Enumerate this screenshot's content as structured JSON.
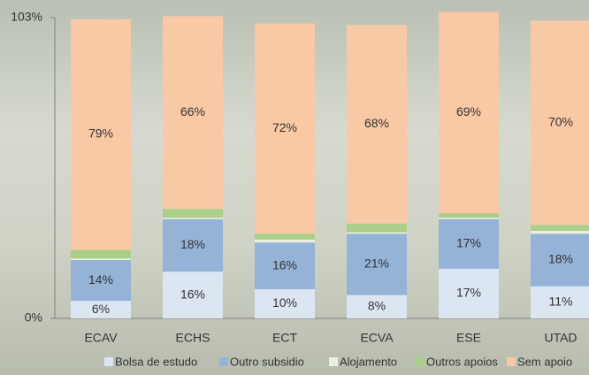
{
  "chart_data": {
    "type": "stacked_bar",
    "categories": [
      "ECAV",
      "ECHS",
      "ECT",
      "ECVA",
      "ESE",
      "UTAD"
    ],
    "series": [
      {
        "name": "Bolsa de estudo",
        "color": "#dce6f2",
        "values": [
          6,
          16,
          10,
          8,
          17,
          11
        ],
        "value_labels": [
          "6%",
          "16%",
          "10%",
          "8%",
          "17%",
          "11%"
        ]
      },
      {
        "name": "Outro subsidio",
        "color": "#95b3d7",
        "values": [
          14,
          18,
          16,
          21,
          17,
          18
        ],
        "value_labels": [
          "14%",
          "18%",
          "16%",
          "21%",
          "17%",
          "18%"
        ]
      },
      {
        "name": "Alojamento",
        "color": "#ebf1de",
        "values": [
          0.5,
          0.5,
          1,
          0.5,
          0.5,
          1
        ]
      },
      {
        "name": "Outros apoios",
        "color": "#a9cf88",
        "values": [
          3,
          3,
          2,
          3,
          1.5,
          2
        ]
      },
      {
        "name": "Sem apoio",
        "color": "#f9c9a6",
        "values": [
          79,
          66,
          72,
          68,
          69,
          70
        ],
        "value_labels": [
          "79%",
          "66%",
          "72%",
          "68%",
          "69%",
          "70%"
        ]
      }
    ],
    "ylim": [
      0,
      103
    ],
    "yticks": [
      {
        "value": 0,
        "label": "0%"
      },
      {
        "value": 103,
        "label": "103%"
      }
    ]
  }
}
